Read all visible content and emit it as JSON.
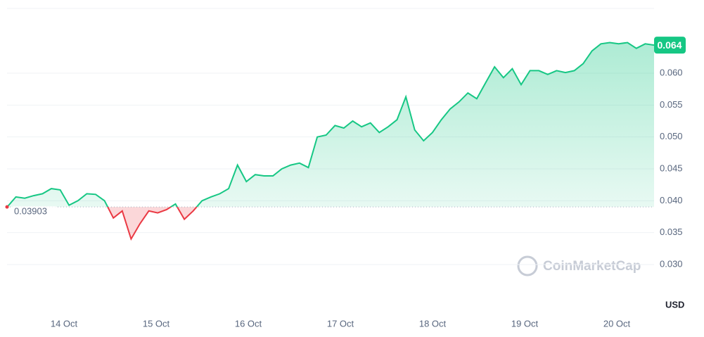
{
  "chart_data": {
    "type": "line",
    "brand": "CoinMarketCap",
    "currency": "USD",
    "baseline": 0.03903,
    "current_price": {
      "value": 0.0644,
      "label": "0.064"
    },
    "up_color": "#16c784",
    "down_color": "#ea3943",
    "xticks": [
      "14 Oct",
      "15 Oct",
      "16 Oct",
      "17 Oct",
      "18 Oct",
      "19 Oct",
      "20 Oct"
    ],
    "ylim": [
      0.02294,
      0.07015
    ],
    "yticks": [
      {
        "value": 0.03,
        "label": "0.030"
      },
      0.035,
      {
        "value": 0.04,
        "label": "0.040"
      },
      0.045,
      {
        "value": 0.05,
        "label": "0.050"
      },
      0.055,
      {
        "value": 0.06,
        "label": "0.060"
      }
    ],
    "grid": true,
    "values": [
      0.039,
      0.0406,
      0.0404,
      0.0408,
      0.0411,
      0.0419,
      0.0417,
      0.0393,
      0.04,
      0.0411,
      0.041,
      0.04,
      0.0373,
      0.0384,
      0.034,
      0.0364,
      0.0384,
      0.0381,
      0.0386,
      0.0395,
      0.0371,
      0.0384,
      0.04,
      0.0406,
      0.0411,
      0.0419,
      0.0456,
      0.043,
      0.0441,
      0.0439,
      0.0439,
      0.045,
      0.0456,
      0.0459,
      0.0452,
      0.05,
      0.0503,
      0.0518,
      0.0514,
      0.0525,
      0.0516,
      0.0522,
      0.0507,
      0.0516,
      0.0527,
      0.0563,
      0.0511,
      0.0494,
      0.0507,
      0.0527,
      0.0544,
      0.0555,
      0.0569,
      0.056,
      0.0585,
      0.061,
      0.0593,
      0.0607,
      0.0582,
      0.0604,
      0.0604,
      0.0598,
      0.0604,
      0.0601,
      0.0604,
      0.0615,
      0.0635,
      0.0646,
      0.0648,
      0.0646,
      0.0648,
      0.0639,
      0.0646,
      0.0644
    ]
  }
}
